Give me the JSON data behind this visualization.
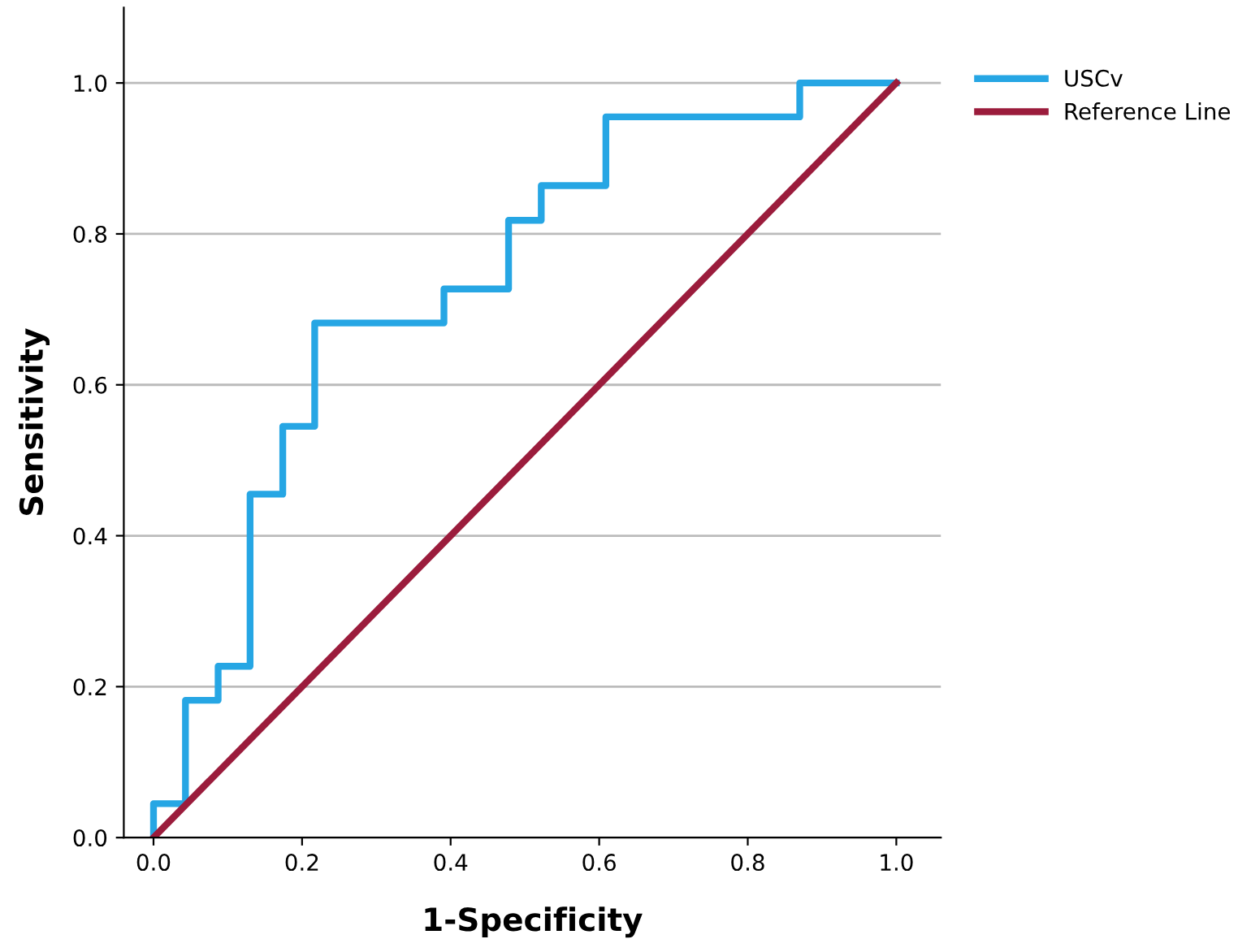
{
  "chart_data": {
    "type": "line",
    "xlabel": "1-Specificity",
    "ylabel": "Sensitivity",
    "xlim": [
      -0.04,
      1.06
    ],
    "ylim": [
      0,
      1.1
    ],
    "xticks": [
      {
        "value": 0,
        "label": "0.0"
      },
      0.2,
      0.4,
      0.6,
      0.8,
      {
        "value": 1,
        "label": "1.0"
      }
    ],
    "yticks": [
      {
        "value": 0,
        "label": "0.0"
      },
      0.2,
      0.4,
      0.6,
      0.8,
      {
        "value": 1,
        "label": "1.0"
      }
    ],
    "grid": "y",
    "legend": "top right",
    "series": [
      {
        "name": "USCv",
        "color": "#26a6e4",
        "x": [
          0,
          0,
          0.043,
          0.043,
          0.087,
          0.087,
          0.13,
          0.13,
          0.174,
          0.174,
          0.217,
          0.217,
          0.391,
          0.391,
          0.478,
          0.478,
          0.522,
          0.522,
          0.609,
          0.609,
          0.87,
          0.87,
          1
        ],
        "values": [
          0,
          0.045,
          0.045,
          0.182,
          0.182,
          0.227,
          0.227,
          0.455,
          0.455,
          0.545,
          0.545,
          0.682,
          0.682,
          0.727,
          0.727,
          0.818,
          0.818,
          0.864,
          0.864,
          0.955,
          0.955,
          1,
          1
        ]
      },
      {
        "name": "Reference Line",
        "color": "#9b1c3c",
        "x": [
          0,
          1
        ],
        "values": [
          0,
          1
        ]
      }
    ]
  }
}
